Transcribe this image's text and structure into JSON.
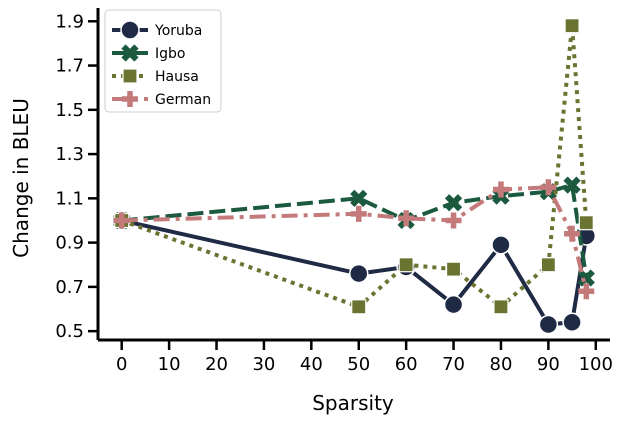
{
  "chart_data": {
    "type": "line",
    "xlabel": "Sparsity",
    "ylabel": "Change in BLEU",
    "xlim": [
      -5,
      103
    ],
    "ylim": [
      0.46,
      1.96
    ],
    "xticks": [
      0,
      10,
      20,
      30,
      40,
      50,
      60,
      70,
      80,
      90,
      100
    ],
    "yticks": [
      0.5,
      0.7,
      0.9,
      1.1,
      1.3,
      1.5,
      1.7,
      1.9
    ],
    "xtick_labels": [
      "0",
      "10",
      "20",
      "30",
      "40",
      "50",
      "60",
      "70",
      "80",
      "90",
      "100"
    ],
    "ytick_labels": [
      "0.5",
      "0.7",
      "0.9",
      "1.1",
      "1.3",
      "1.5",
      "1.7",
      "1.9"
    ],
    "grid": false,
    "legend_position": "top-left",
    "series": [
      {
        "name": "Yoruba",
        "color": "#1f2a44",
        "line_style": "solid",
        "marker": "circle",
        "x": [
          0,
          50,
          60,
          70,
          80,
          90,
          95,
          98
        ],
        "y": [
          1.0,
          0.76,
          0.79,
          0.62,
          0.89,
          0.53,
          0.54,
          0.93
        ]
      },
      {
        "name": "Igbo",
        "color": "#1c5a40",
        "line_style": "dashed",
        "marker": "x",
        "x": [
          0,
          50,
          60,
          70,
          80,
          90,
          95,
          98
        ],
        "y": [
          1.0,
          1.1,
          1.0,
          1.08,
          1.11,
          1.13,
          1.16,
          0.74
        ]
      },
      {
        "name": "Hausa",
        "color": "#6b7331",
        "line_style": "dotted",
        "marker": "square",
        "x": [
          0,
          50,
          60,
          70,
          80,
          90,
          95,
          98
        ],
        "y": [
          1.0,
          0.61,
          0.8,
          0.78,
          0.61,
          0.8,
          1.88,
          0.99
        ]
      },
      {
        "name": "German",
        "color": "#c47a7b",
        "line_style": "dashdot",
        "marker": "plus",
        "x": [
          0,
          50,
          60,
          70,
          80,
          90,
          95,
          98
        ],
        "y": [
          1.0,
          1.03,
          1.01,
          1.0,
          1.14,
          1.15,
          0.94,
          0.68
        ]
      }
    ]
  }
}
